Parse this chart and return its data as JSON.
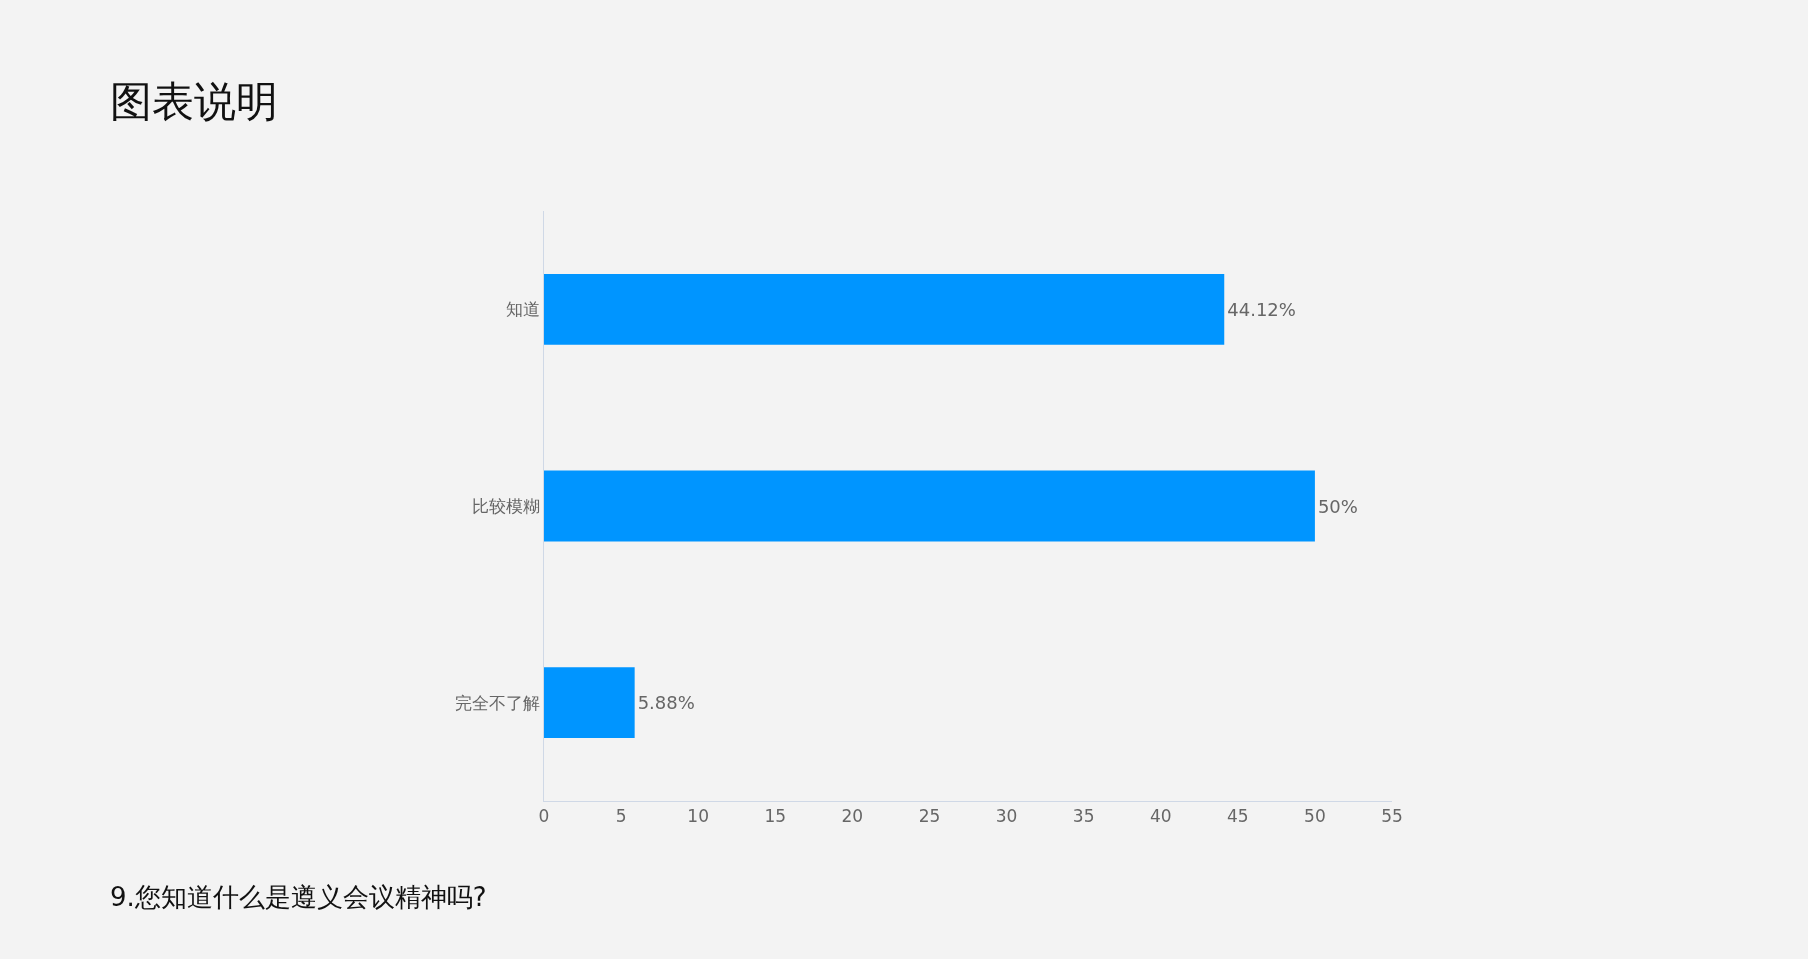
{
  "chart_data": {
    "type": "bar",
    "orientation": "horizontal",
    "title": "图表说明",
    "categories": [
      "知道",
      "比较模糊",
      "完全不了解"
    ],
    "values": [
      44.12,
      50,
      5.88
    ],
    "value_labels": [
      "44.12%",
      "50%",
      "5.88%"
    ],
    "color": "#0095ff",
    "xlim": [
      0,
      55
    ],
    "xticks": [
      0,
      5,
      10,
      15,
      20,
      25,
      30,
      35,
      40,
      45,
      50,
      55
    ],
    "grid": false,
    "legend": false,
    "annotations": [
      "9.您知道什么是遵义会议精神吗?"
    ]
  }
}
